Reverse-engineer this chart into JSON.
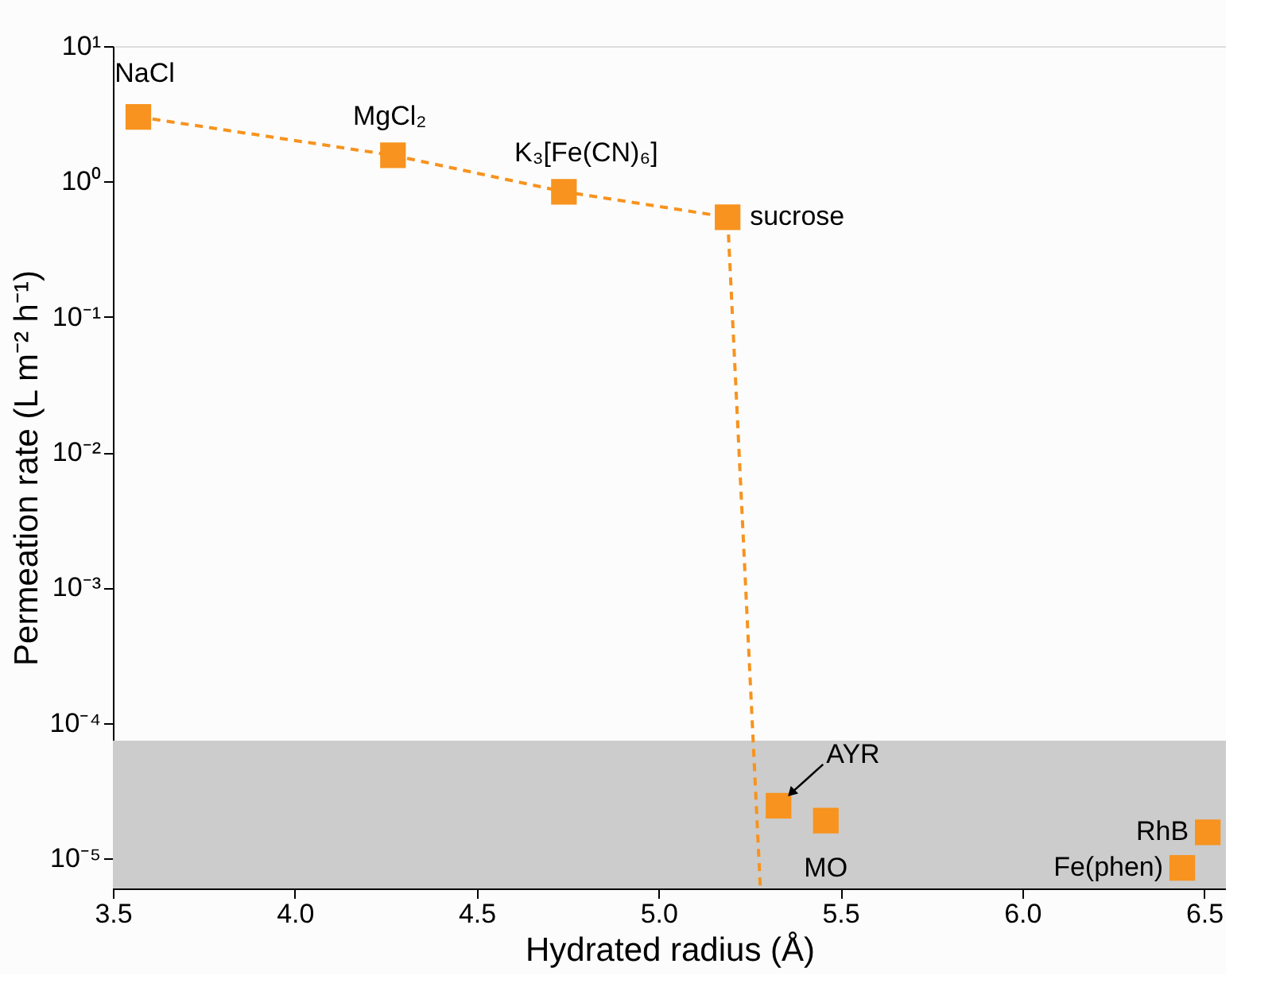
{
  "chart_data": {
    "type": "scatter",
    "xlabel": "Hydrated radius (Å)",
    "ylabel": "Permeation rate (L m⁻² h⁻¹)",
    "xlim": [
      3.5,
      6.56
    ],
    "xticks": [
      3.5,
      {
        "value": 4,
        "label": "4.0"
      },
      4.5,
      {
        "value": 5,
        "label": "5.0"
      },
      5.5,
      {
        "value": 6,
        "label": "6.0"
      },
      6.5
    ],
    "ylim": [
      6e-06,
      10
    ],
    "yticks": [
      {
        "value": 10,
        "label": "10¹"
      },
      {
        "value": 1,
        "label": "10⁰"
      },
      {
        "value": 0.1,
        "label": "10⁻¹"
      },
      {
        "value": 0.01,
        "label": "10⁻²"
      },
      {
        "value": 0.001,
        "label": "10⁻³"
      },
      {
        "value": 0.0001,
        "label": "10⁻⁴"
      },
      {
        "value": 1e-05,
        "label": "10⁻⁵"
      }
    ],
    "log": true,
    "grid": false,
    "bands": [
      {
        "axis": "y",
        "from": 6e-06,
        "to": 7.4e-05,
        "color": "#cccccc"
      }
    ],
    "series": [
      {
        "type": "line",
        "color": "#f7931e",
        "line_style": "dashed",
        "x": [
          3.57,
          4.27,
          4.74,
          5.19,
          5.28
        ],
        "values": [
          3.0,
          1.56,
          0.84,
          0.545,
          6e-06
        ]
      },
      {
        "color": "#f7931e",
        "marker": "square",
        "x": [
          3.57,
          4.27,
          4.74,
          5.19,
          5.33,
          5.46,
          6.51,
          6.44
        ],
        "values": [
          3.0,
          1.56,
          0.84,
          0.545,
          2.45e-05,
          1.9e-05,
          1.56e-05,
          8.5e-06
        ]
      }
    ],
    "annotations": [
      {
        "text": "NaCl",
        "x": 3.57,
        "y": 3.0
      },
      {
        "text": "MgCl₂",
        "x": 4.27,
        "y": 1.56
      },
      {
        "text": "K₃[Fe(CN)₆]",
        "x": 4.74,
        "y": 0.84
      },
      {
        "text": "sucrose",
        "x": 5.19,
        "y": 0.545
      },
      {
        "text": "AYR",
        "x": 5.33,
        "y": 2.45e-05
      },
      {
        "text": "MO",
        "x": 5.46,
        "y": 1.9e-05
      },
      {
        "text": "RhB",
        "x": 6.51,
        "y": 1.56e-05
      },
      {
        "text": "Fe(phen)",
        "x": 6.44,
        "y": 8.5e-06
      }
    ]
  }
}
